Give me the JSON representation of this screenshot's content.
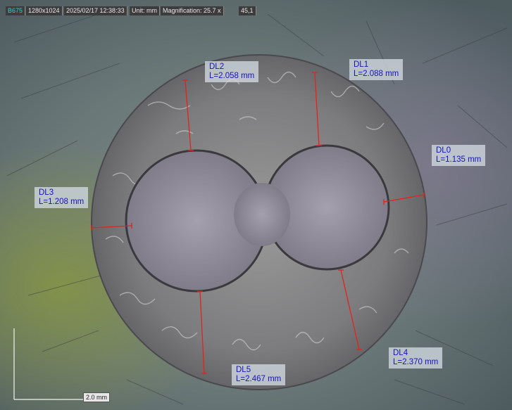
{
  "header": {
    "device_id": "B675",
    "resolution": "1280x1024",
    "datetime": "2025/02/17 12:38:33",
    "unit": "Unit: mm",
    "magnification": "Magnification: 25.7 x",
    "extra": "45,1"
  },
  "measurements": [
    {
      "name": "DL0",
      "length": "L=1.135 mm"
    },
    {
      "name": "DL1",
      "length": "L=2.088 mm"
    },
    {
      "name": "DL2",
      "length": "L=2.058 mm"
    },
    {
      "name": "DL3",
      "length": "L=1.208 mm"
    },
    {
      "name": "DL4",
      "length": "L=2.370 mm"
    },
    {
      "name": "DL5",
      "length": "L=2.467 mm"
    }
  ],
  "scale_bar": {
    "label": "2.0 mm"
  },
  "colors": {
    "measure_line": "#e0241c",
    "label_text": "#1515b8",
    "label_bg": "#cdd4dc"
  }
}
